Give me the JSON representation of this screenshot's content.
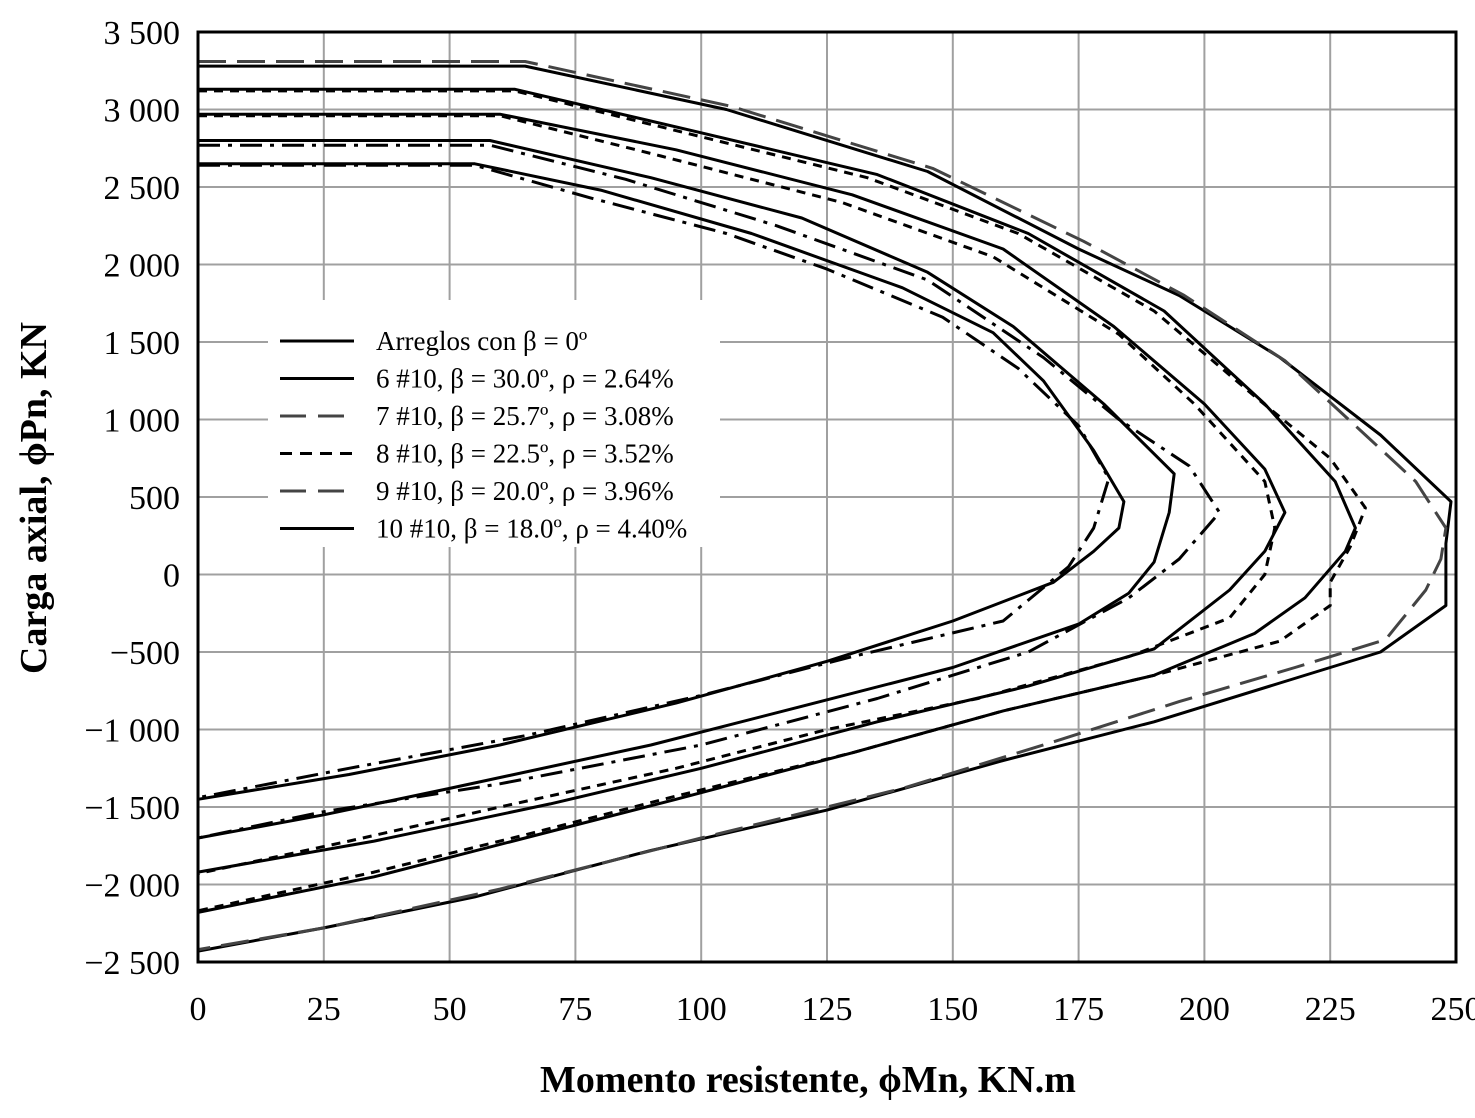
{
  "chart_data": {
    "type": "line",
    "xlabel": "Momento resistente, ϕMn, KN.m",
    "ylabel": "Carga axial, ϕPn, KN",
    "xlim": [
      0,
      250
    ],
    "ylim": [
      -2500,
      3500
    ],
    "x_ticks": [
      0,
      25,
      50,
      75,
      100,
      125,
      150,
      175,
      200,
      225,
      250
    ],
    "x_tick_labels": [
      "0",
      "25",
      "50",
      "75",
      "100",
      "125",
      "150",
      "175",
      "200",
      "225",
      "250"
    ],
    "y_ticks": [
      3500,
      3000,
      2500,
      2000,
      1500,
      1000,
      500,
      0,
      -500,
      -1000,
      -1500,
      -2000,
      -2500
    ],
    "y_tick_labels": [
      "3 500",
      "3 000",
      "2 500",
      "2 000",
      "1 500",
      "1 000",
      "500",
      "0",
      "−500",
      "−1 000",
      "−1 500",
      "−2 000",
      "−2 500"
    ],
    "grid": true,
    "legend_position": "center-left",
    "legend": [
      {
        "label": "Arreglos con β = 0º",
        "dash": "solid"
      },
      {
        "label": "6 #10, β = 30.0º, ρ = 2.64%",
        "dash": "solid"
      },
      {
        "label": "7 #10, β = 25.7º, ρ = 3.08%",
        "dash": "longdash"
      },
      {
        "label": "8 #10, β = 22.5º, ρ = 3.52%",
        "dash": "shortdash"
      },
      {
        "label": "9 #10, β = 20.0º, ρ = 3.96%",
        "dash": "longdash"
      },
      {
        "label": "10 #10, β = 18.0º, ρ = 4.40%",
        "dash": "solid"
      }
    ],
    "series": [
      {
        "color": "#000000",
        "dash": "solid",
        "points": [
          [
            0,
            2650
          ],
          [
            55,
            2650
          ],
          [
            80,
            2480
          ],
          [
            110,
            2200
          ],
          [
            140,
            1850
          ],
          [
            158,
            1560
          ],
          [
            168,
            1250
          ],
          [
            178,
            800
          ],
          [
            184,
            470
          ],
          [
            183,
            300
          ],
          [
            178,
            150
          ],
          [
            170,
            -50
          ],
          [
            150,
            -300
          ],
          [
            125,
            -560
          ],
          [
            95,
            -830
          ],
          [
            60,
            -1100
          ],
          [
            30,
            -1290
          ],
          [
            0,
            -1450
          ]
        ]
      },
      {
        "color": "#000000",
        "dash": "dashdot",
        "points": [
          [
            0,
            2640
          ],
          [
            55,
            2640
          ],
          [
            78,
            2430
          ],
          [
            105,
            2200
          ],
          [
            125,
            1970
          ],
          [
            148,
            1660
          ],
          [
            163,
            1330
          ],
          [
            175,
            960
          ],
          [
            181,
            620
          ],
          [
            178,
            300
          ],
          [
            173,
            50
          ],
          [
            160,
            -300
          ],
          [
            130,
            -530
          ],
          [
            100,
            -780
          ],
          [
            65,
            -1040
          ],
          [
            30,
            -1250
          ],
          [
            0,
            -1440
          ]
        ]
      },
      {
        "color": "#000000",
        "dash": "solid",
        "points": [
          [
            0,
            2800
          ],
          [
            58,
            2800
          ],
          [
            90,
            2560
          ],
          [
            120,
            2300
          ],
          [
            145,
            1950
          ],
          [
            162,
            1600
          ],
          [
            180,
            1100
          ],
          [
            194,
            650
          ],
          [
            193,
            400
          ],
          [
            190,
            80
          ],
          [
            185,
            -120
          ],
          [
            175,
            -320
          ],
          [
            150,
            -600
          ],
          [
            120,
            -850
          ],
          [
            90,
            -1100
          ],
          [
            50,
            -1380
          ],
          [
            25,
            -1550
          ],
          [
            0,
            -1700
          ]
        ]
      },
      {
        "color": "#000000",
        "dash": "dashdot",
        "points": [
          [
            0,
            2770
          ],
          [
            58,
            2770
          ],
          [
            85,
            2550
          ],
          [
            115,
            2250
          ],
          [
            145,
            1900
          ],
          [
            168,
            1400
          ],
          [
            183,
            1000
          ],
          [
            197,
            700
          ],
          [
            203,
            400
          ],
          [
            195,
            100
          ],
          [
            185,
            -150
          ],
          [
            165,
            -500
          ],
          [
            135,
            -800
          ],
          [
            100,
            -1100
          ],
          [
            60,
            -1350
          ],
          [
            25,
            -1530
          ],
          [
            0,
            -1700
          ]
        ]
      },
      {
        "color": "#000000",
        "dash": "solid",
        "points": [
          [
            0,
            2970
          ],
          [
            60,
            2970
          ],
          [
            95,
            2740
          ],
          [
            130,
            2450
          ],
          [
            160,
            2100
          ],
          [
            182,
            1600
          ],
          [
            200,
            1100
          ],
          [
            212,
            680
          ],
          [
            216,
            400
          ],
          [
            212,
            150
          ],
          [
            205,
            -100
          ],
          [
            190,
            -480
          ],
          [
            165,
            -720
          ],
          [
            135,
            -950
          ],
          [
            100,
            -1250
          ],
          [
            70,
            -1480
          ],
          [
            35,
            -1720
          ],
          [
            0,
            -1920
          ]
        ]
      },
      {
        "color": "#000000",
        "dash": "shortdash",
        "points": [
          [
            0,
            2960
          ],
          [
            60,
            2960
          ],
          [
            92,
            2700
          ],
          [
            128,
            2400
          ],
          [
            158,
            2050
          ],
          [
            183,
            1550
          ],
          [
            198,
            1100
          ],
          [
            212,
            600
          ],
          [
            214,
            300
          ],
          [
            212,
            0
          ],
          [
            205,
            -280
          ],
          [
            185,
            -530
          ],
          [
            155,
            -800
          ],
          [
            125,
            -1000
          ],
          [
            95,
            -1250
          ],
          [
            60,
            -1500
          ],
          [
            30,
            -1720
          ],
          [
            0,
            -1930
          ]
        ]
      },
      {
        "color": "#000000",
        "dash": "solid",
        "points": [
          [
            0,
            3130
          ],
          [
            63,
            3130
          ],
          [
            100,
            2850
          ],
          [
            135,
            2580
          ],
          [
            165,
            2200
          ],
          [
            192,
            1700
          ],
          [
            212,
            1100
          ],
          [
            226,
            600
          ],
          [
            230,
            300
          ],
          [
            228,
            150
          ],
          [
            220,
            -150
          ],
          [
            210,
            -380
          ],
          [
            190,
            -650
          ],
          [
            160,
            -880
          ],
          [
            130,
            -1150
          ],
          [
            95,
            -1450
          ],
          [
            65,
            -1700
          ],
          [
            35,
            -1950
          ],
          [
            0,
            -2180
          ]
        ]
      },
      {
        "color": "#000000",
        "dash": "shortdash",
        "points": [
          [
            0,
            3120
          ],
          [
            63,
            3120
          ],
          [
            98,
            2840
          ],
          [
            133,
            2560
          ],
          [
            163,
            2200
          ],
          [
            190,
            1700
          ],
          [
            210,
            1150
          ],
          [
            225,
            750
          ],
          [
            232,
            430
          ],
          [
            229,
            180
          ],
          [
            225,
            -50
          ],
          [
            225,
            -200
          ],
          [
            215,
            -430
          ],
          [
            190,
            -650
          ],
          [
            160,
            -880
          ],
          [
            130,
            -1150
          ],
          [
            95,
            -1430
          ],
          [
            65,
            -1680
          ],
          [
            35,
            -1920
          ],
          [
            0,
            -2170
          ]
        ]
      },
      {
        "color": "#000000",
        "dash": "solid",
        "points": [
          [
            0,
            3280
          ],
          [
            65,
            3280
          ],
          [
            105,
            3000
          ],
          [
            145,
            2600
          ],
          [
            175,
            2100
          ],
          [
            195,
            1800
          ],
          [
            215,
            1400
          ],
          [
            235,
            900
          ],
          [
            249,
            470
          ],
          [
            248,
            200
          ],
          [
            248,
            -200
          ],
          [
            235,
            -500
          ],
          [
            215,
            -700
          ],
          [
            190,
            -950
          ],
          [
            160,
            -1200
          ],
          [
            125,
            -1520
          ],
          [
            90,
            -1780
          ],
          [
            55,
            -2080
          ],
          [
            25,
            -2280
          ],
          [
            0,
            -2430
          ]
        ]
      },
      {
        "color": "#444444",
        "dash": "longdash",
        "points": [
          [
            0,
            3310
          ],
          [
            65,
            3310
          ],
          [
            106,
            3020
          ],
          [
            146,
            2620
          ],
          [
            176,
            2150
          ],
          [
            196,
            1800
          ],
          [
            216,
            1380
          ],
          [
            232,
            900
          ],
          [
            242,
            600
          ],
          [
            248,
            300
          ],
          [
            247,
            100
          ],
          [
            244,
            -100
          ],
          [
            236,
            -420
          ],
          [
            218,
            -600
          ],
          [
            195,
            -820
          ],
          [
            170,
            -1080
          ],
          [
            140,
            -1380
          ],
          [
            100,
            -1700
          ],
          [
            60,
            -2030
          ],
          [
            25,
            -2280
          ],
          [
            0,
            -2420
          ]
        ]
      }
    ]
  }
}
